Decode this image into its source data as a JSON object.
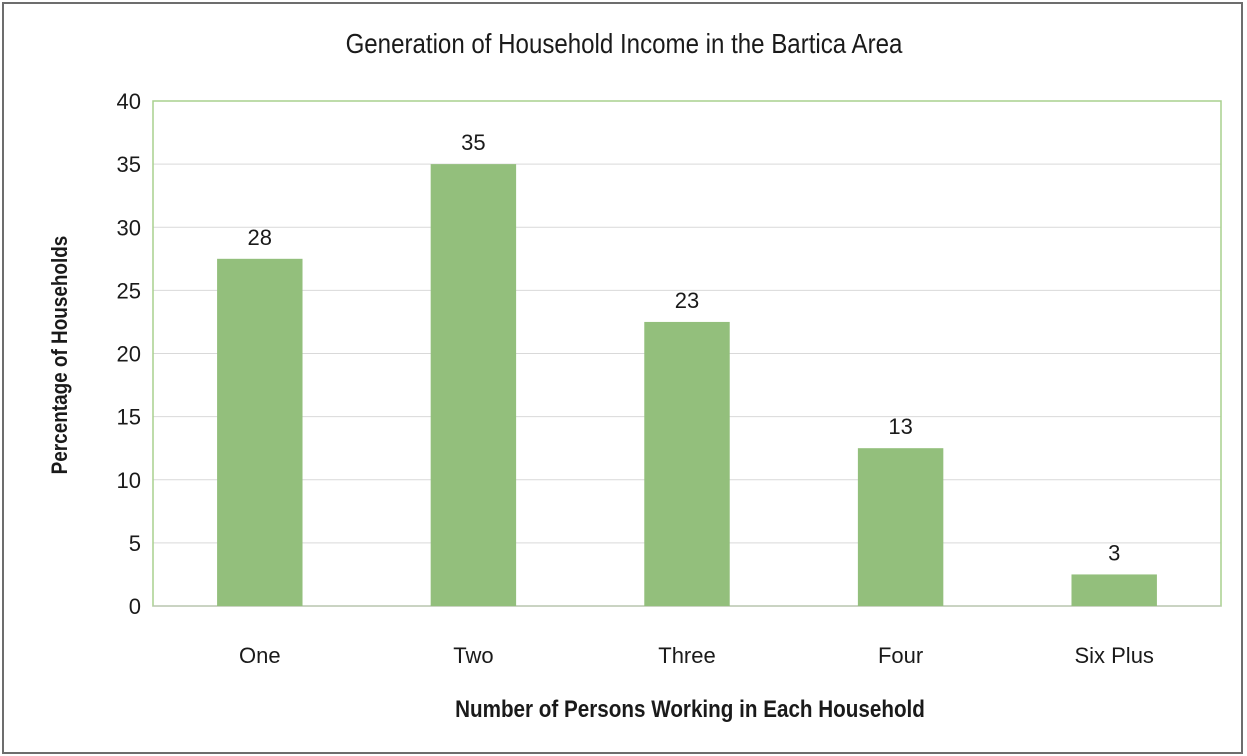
{
  "chart_data": {
    "type": "bar",
    "title": "Generation of Household Income in the Bartica Area",
    "xlabel": "Number of Persons Working in Each Household",
    "ylabel": "Percentage of Households",
    "categories": [
      "One",
      "Two",
      "Three",
      "Four",
      "Six Plus"
    ],
    "values": [
      27.5,
      35,
      22.5,
      12.5,
      2.5
    ],
    "data_labels": [
      "28",
      "35",
      "23",
      "13",
      "3"
    ],
    "ylim": [
      0,
      40
    ],
    "yticks": [
      0,
      5,
      10,
      15,
      20,
      25,
      30,
      35,
      40
    ],
    "grid": true,
    "legend": "none",
    "colors": {
      "bar": "#93bf7c",
      "grid": "#d9d9d9",
      "plot_border": "#a9d08e",
      "frame": "#6d6d6d"
    }
  }
}
